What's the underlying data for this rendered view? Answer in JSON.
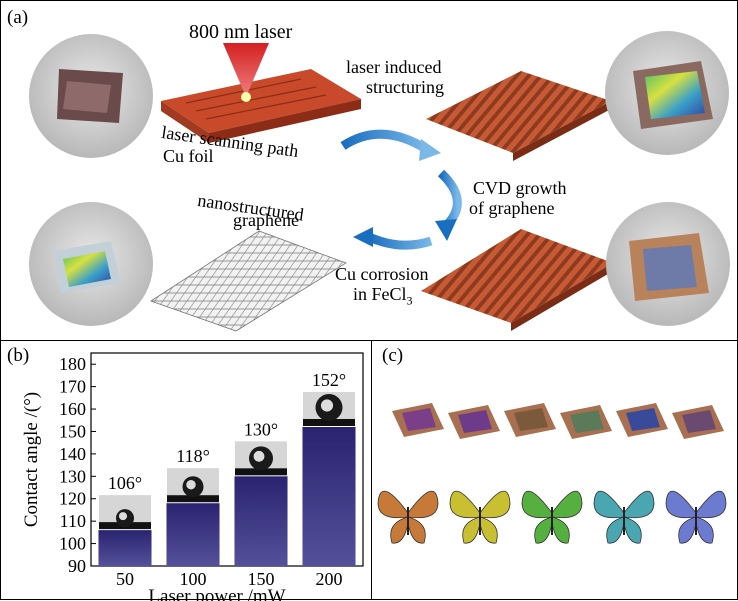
{
  "panel_a": {
    "letter": "(a)",
    "laser": "800 nm laser",
    "scan_path": "laser scanning path",
    "cu_foil": "Cu foil",
    "lis_line1": "laser induced",
    "lis_line2": "structuring",
    "cvd_line1": "CVD growth",
    "cvd_line2": "of graphene",
    "nano_line1": "nanostructured",
    "nano_line2": "graphene",
    "cu_corr_line1": "Cu corrosion",
    "cu_corr_line2": "in FeCl",
    "cu_corr_sub": "3"
  },
  "panel_b": {
    "letter": "(b)",
    "chart_data": {
      "type": "bar",
      "categories": [
        "50",
        "100",
        "150",
        "200"
      ],
      "values": [
        106,
        118,
        130,
        152
      ],
      "data_labels": [
        "106°",
        "118°",
        "130°",
        "152°"
      ],
      "xlabel": "Laser power /mW",
      "ylabel": "Contact angle /(°)",
      "ylim": [
        90,
        185
      ],
      "yticks": [
        90,
        100,
        110,
        120,
        130,
        140,
        150,
        160,
        170,
        180
      ],
      "bar_color": "#2a2470"
    }
  },
  "panel_c": {
    "letter": "(c)",
    "sample_colors": [
      "#7a3f88",
      "#6e3a8a",
      "#7a5a3a",
      "#5a7a5a",
      "#3a4a9a",
      "#6a4a70"
    ],
    "butterfly_colors": [
      "#c77a38",
      "#c8c030",
      "#56b040",
      "#4aa6b0",
      "#6c7ad0"
    ]
  }
}
